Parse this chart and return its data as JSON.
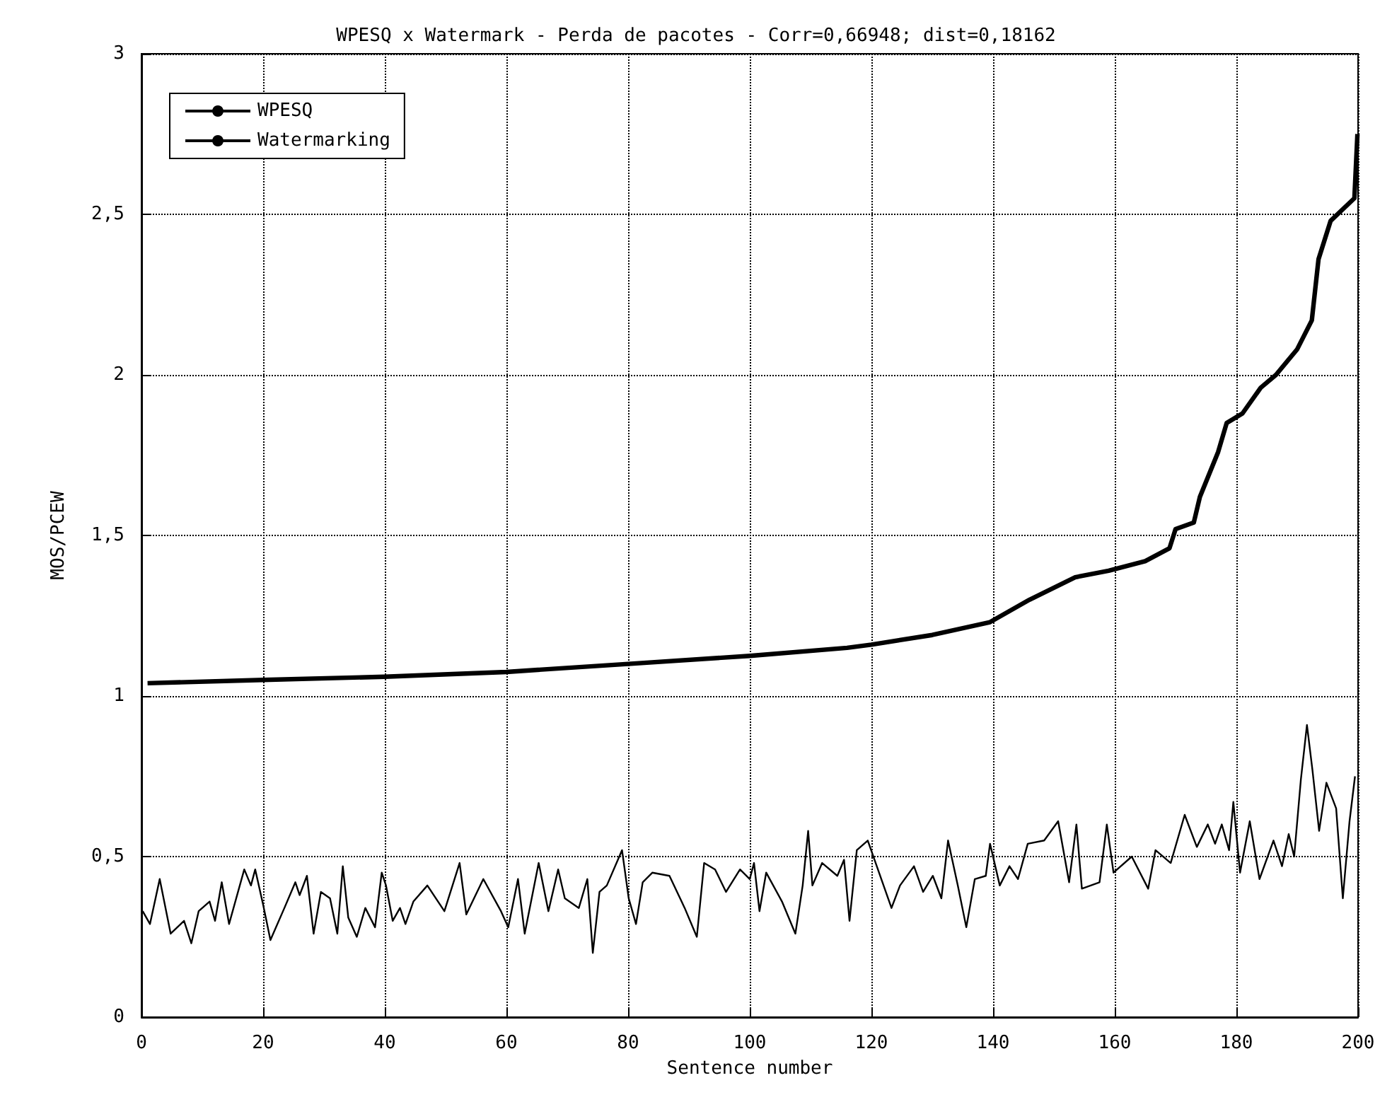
{
  "chart_data": {
    "type": "line",
    "title": "WPESQ x Watermark - Perda de pacotes - Corr=0,66948; dist=0,18162",
    "xlabel": "Sentence number",
    "ylabel": "MOS/PCEW",
    "xlim": [
      0,
      200
    ],
    "xticks": [
      0,
      20,
      40,
      60,
      80,
      100,
      120,
      140,
      160,
      180,
      200
    ],
    "ylim": [
      0,
      3
    ],
    "yticks": [
      0,
      {
        "value": 0.5,
        "label": "0,5"
      },
      1,
      {
        "value": 1.5,
        "label": "1,5"
      },
      2,
      {
        "value": 2.5,
        "label": "2,5"
      },
      3
    ],
    "grid": true,
    "legend": "top left",
    "marker": "none",
    "line_style": "solid",
    "series": [
      {
        "name": "WPESQ",
        "color": "#000000",
        "x": [
          1,
          20,
          40,
          60,
          80,
          100,
          116,
          120,
          130,
          139.5,
          146,
          153.5,
          159,
          165,
          169,
          170,
          173,
          174,
          177,
          178.4,
          181,
          184,
          186.5,
          190,
          192.4,
          193.5,
          195.5,
          199.4,
          199.9,
          200
        ],
        "values": [
          1.04,
          1.05,
          1.06,
          1.075,
          1.1,
          1.125,
          1.15,
          1.16,
          1.19,
          1.23,
          1.3,
          1.37,
          1.39,
          1.42,
          1.46,
          1.52,
          1.54,
          1.62,
          1.76,
          1.85,
          1.88,
          1.96,
          2.0,
          2.08,
          2.17,
          2.36,
          2.48,
          2.55,
          2.75,
          2.75
        ]
      },
      {
        "name": "Watermarking",
        "color": "#000000",
        "x": [
          0.2,
          1.4,
          3,
          4.8,
          7,
          8.2,
          9.4,
          11.2,
          12.1,
          13.2,
          14.4,
          16.9,
          18,
          18.7,
          20,
          21.2,
          23.5,
          25.3,
          26,
          27.2,
          28.3,
          29.5,
          31,
          32.2,
          33.1,
          34,
          35.4,
          36.8,
          38.4,
          39.5,
          40.2,
          41.3,
          42.5,
          43.4,
          44.7,
          47,
          49.8,
          52.3,
          53.4,
          56.2,
          59.1,
          60.3,
          61.9,
          63,
          65.3,
          66.9,
          68.5,
          69.6,
          71.9,
          73.3,
          74.2,
          75.3,
          76.5,
          79,
          80.1,
          81.3,
          82.4,
          84,
          86.8,
          89.3,
          91.3,
          92.5,
          94.3,
          96.1,
          98.4,
          100,
          100.7,
          101.6,
          102.7,
          105.3,
          107.5,
          108.7,
          109.6,
          110.3,
          111.9,
          114.4,
          115.5,
          116.4,
          117.6,
          119.4,
          123.3,
          124.7,
          127,
          128.5,
          130.1,
          131.5,
          132.6,
          134.2,
          135.6,
          137,
          138.8,
          139.5,
          141.1,
          142.7,
          144.1,
          145.7,
          148.4,
          150.7,
          152.5,
          153.7,
          154.6,
          157.5,
          158.7,
          159.8,
          162.8,
          165.5,
          166.7,
          169.2,
          171.5,
          173.5,
          175.3,
          176.5,
          177.6,
          178.8,
          179.5,
          180.6,
          182.2,
          183.8,
          186.1,
          187.5,
          188.6,
          189.5,
          190.6,
          191.6,
          192.5,
          193.6,
          194.8,
          196.4,
          197.5,
          198.6,
          199.5
        ],
        "values": [
          0.33,
          0.29,
          0.43,
          0.26,
          0.3,
          0.23,
          0.33,
          0.36,
          0.3,
          0.42,
          0.29,
          0.46,
          0.41,
          0.46,
          0.35,
          0.24,
          0.34,
          0.42,
          0.38,
          0.44,
          0.26,
          0.39,
          0.37,
          0.26,
          0.47,
          0.31,
          0.25,
          0.34,
          0.28,
          0.45,
          0.41,
          0.3,
          0.34,
          0.29,
          0.36,
          0.41,
          0.33,
          0.48,
          0.32,
          0.43,
          0.33,
          0.28,
          0.43,
          0.26,
          0.48,
          0.33,
          0.46,
          0.37,
          0.34,
          0.43,
          0.2,
          0.39,
          0.41,
          0.52,
          0.37,
          0.29,
          0.42,
          0.45,
          0.44,
          0.34,
          0.25,
          0.48,
          0.46,
          0.39,
          0.46,
          0.43,
          0.48,
          0.33,
          0.45,
          0.36,
          0.26,
          0.41,
          0.58,
          0.41,
          0.48,
          0.44,
          0.49,
          0.3,
          0.52,
          0.55,
          0.34,
          0.41,
          0.47,
          0.39,
          0.44,
          0.37,
          0.55,
          0.41,
          0.28,
          0.43,
          0.44,
          0.54,
          0.41,
          0.47,
          0.43,
          0.54,
          0.55,
          0.61,
          0.42,
          0.6,
          0.4,
          0.42,
          0.6,
          0.45,
          0.5,
          0.4,
          0.52,
          0.48,
          0.63,
          0.53,
          0.6,
          0.54,
          0.6,
          0.52,
          0.67,
          0.45,
          0.61,
          0.43,
          0.55,
          0.47,
          0.57,
          0.5,
          0.74,
          0.91,
          0.77,
          0.58,
          0.73,
          0.65,
          0.37,
          0.61,
          0.75
        ]
      }
    ]
  }
}
